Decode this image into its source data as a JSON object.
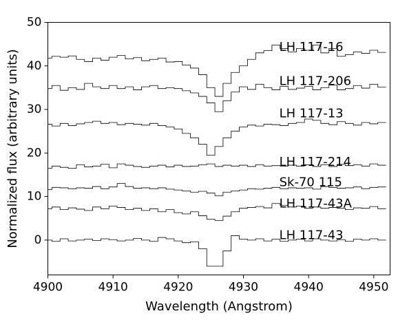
{
  "chart_data": {
    "type": "line",
    "title": "",
    "xlabel": "Wavelength (Angstrom)",
    "ylabel": "Normalized flux (arbitrary units)",
    "xlim": [
      4900,
      4952.5
    ],
    "ylim": [
      -8,
      50
    ],
    "xticks": [
      4900,
      4910,
      4920,
      4930,
      4940,
      4950
    ],
    "yticks": [
      0,
      10,
      20,
      30,
      40,
      50
    ],
    "grid": false,
    "legend": "none",
    "line_style": "steps-mid",
    "bin_width": 1.25,
    "x": [
      4900.0,
      4901.25,
      4902.5,
      4903.75,
      4905.0,
      4906.25,
      4907.5,
      4908.75,
      4910.0,
      4911.25,
      4912.5,
      4913.75,
      4915.0,
      4916.25,
      4917.5,
      4918.75,
      4920.0,
      4921.25,
      4922.5,
      4923.75,
      4925.0,
      4926.25,
      4927.5,
      4928.75,
      4930.0,
      4931.25,
      4932.5,
      4933.75,
      4935.0,
      4936.25,
      4937.5,
      4938.75,
      4940.0,
      4941.25,
      4942.5,
      4943.75,
      4945.0,
      4946.25,
      4947.5,
      4948.75,
      4950.0,
      4951.25
    ],
    "series": [
      {
        "name": "LH 117-16",
        "label_y": 44.2,
        "values": [
          41.8,
          42.2,
          42.0,
          42.3,
          41.5,
          41.0,
          41.8,
          41.3,
          42.0,
          42.4,
          41.6,
          41.9,
          41.2,
          41.5,
          41.8,
          40.9,
          41.0,
          40.2,
          39.5,
          38.0,
          35.0,
          33.0,
          36.0,
          38.5,
          40.0,
          41.5,
          43.0,
          43.5,
          44.8,
          44.0,
          43.2,
          44.0,
          43.6,
          44.8,
          43.0,
          44.0,
          42.2,
          42.6,
          43.2,
          42.9,
          43.6,
          43.1
        ]
      },
      {
        "name": "LH 117-206",
        "label_y": 36.4,
        "values": [
          34.8,
          35.5,
          34.4,
          35.0,
          34.6,
          36.0,
          35.2,
          34.8,
          35.5,
          34.8,
          35.2,
          34.5,
          35.2,
          35.5,
          34.8,
          35.0,
          34.8,
          34.3,
          33.8,
          33.0,
          31.5,
          29.5,
          32.0,
          34.0,
          35.2,
          34.6,
          35.8,
          35.0,
          34.5,
          35.3,
          34.6,
          34.9,
          35.3,
          34.5,
          35.0,
          35.6,
          34.5,
          34.8,
          35.5,
          34.9,
          35.8,
          35.1
        ]
      },
      {
        "name": "LH 117-13",
        "label_y": 29.0,
        "values": [
          26.6,
          26.2,
          26.8,
          26.3,
          26.7,
          27.0,
          27.3,
          26.8,
          27.0,
          26.5,
          26.8,
          26.6,
          26.4,
          26.8,
          26.3,
          26.0,
          25.5,
          24.5,
          23.5,
          22.0,
          19.5,
          21.5,
          23.5,
          25.0,
          26.0,
          26.4,
          26.2,
          26.6,
          26.5,
          26.3,
          26.8,
          27.0,
          27.8,
          27.5,
          26.8,
          26.5,
          27.2,
          26.8,
          26.4,
          27.0,
          26.7,
          27.0
        ]
      },
      {
        "name": "LH 117-214",
        "label_y": 17.8,
        "values": [
          16.5,
          17.0,
          16.7,
          16.5,
          17.3,
          16.8,
          17.0,
          17.4,
          16.6,
          17.5,
          17.2,
          16.9,
          16.7,
          17.0,
          17.2,
          16.8,
          17.2,
          16.9,
          17.0,
          17.3,
          17.5,
          16.9,
          17.2,
          17.0,
          17.2,
          16.9,
          17.3,
          17.0,
          17.1,
          17.0,
          17.2,
          17.0,
          17.3,
          16.9,
          17.3,
          16.9,
          17.4,
          17.1,
          17.3,
          17.0,
          17.5,
          17.2
        ]
      },
      {
        "name": "Sk-70 115",
        "label_y": 13.2,
        "values": [
          11.6,
          12.1,
          12.0,
          11.8,
          12.0,
          11.9,
          12.3,
          11.8,
          12.2,
          13.0,
          12.3,
          11.9,
          12.0,
          11.8,
          12.0,
          11.7,
          11.5,
          11.3,
          11.0,
          11.2,
          10.8,
          10.2,
          11.0,
          11.3,
          11.5,
          11.8,
          11.7,
          11.9,
          12.1,
          11.8,
          12.0,
          11.9,
          12.0,
          11.7,
          12.3,
          12.1,
          11.9,
          12.0,
          12.2,
          11.8,
          12.1,
          12.2
        ]
      },
      {
        "name": "LH 117-43A",
        "label_y": 8.3,
        "values": [
          7.2,
          7.6,
          7.0,
          7.4,
          7.1,
          6.8,
          7.6,
          7.2,
          7.8,
          7.5,
          7.0,
          7.3,
          6.8,
          7.2,
          6.5,
          7.0,
          6.3,
          6.0,
          6.5,
          5.6,
          4.8,
          4.5,
          5.5,
          6.5,
          7.3,
          7.5,
          7.7,
          7.4,
          8.4,
          8.0,
          7.6,
          7.8,
          7.3,
          7.6,
          7.3,
          7.5,
          7.3,
          7.0,
          7.4,
          7.3,
          7.7,
          7.2
        ]
      },
      {
        "name": "LH 117-43",
        "label_y": 1.0,
        "values": [
          0.0,
          -0.3,
          0.3,
          -0.2,
          0.0,
          0.2,
          -0.1,
          0.3,
          0.1,
          -0.2,
          0.0,
          0.4,
          0.0,
          -0.3,
          0.6,
          0.3,
          -0.2,
          -0.6,
          -0.4,
          -2.0,
          -6.0,
          -6.0,
          -2.5,
          1.0,
          0.2,
          0.0,
          0.3,
          -0.2,
          0.2,
          -0.3,
          0.0,
          0.2,
          -0.2,
          0.3,
          0.0,
          -0.2,
          0.1,
          -0.3,
          0.2,
          0.0,
          0.3,
          0.0
        ]
      }
    ]
  }
}
